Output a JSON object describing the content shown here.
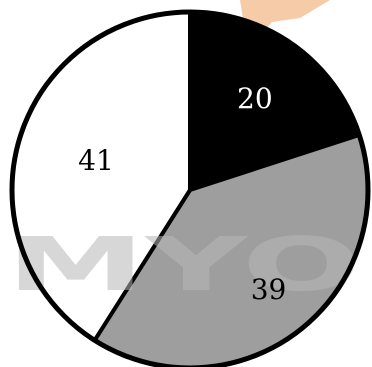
{
  "chart_data": {
    "type": "pie",
    "categories": [
      "",
      "",
      ""
    ],
    "values": [
      20,
      39,
      41
    ],
    "slice_colors": [
      "#000000",
      "#9e9e9e",
      "#ffffff"
    ],
    "label_colors": [
      "#ffffff",
      "#000000",
      "#000000"
    ],
    "data_labels": [
      "20",
      "39",
      "41"
    ],
    "start_angle": "12 o'clock",
    "direction": "clockwise",
    "outline_color": "#000000"
  },
  "watermark": {
    "text": "MYO"
  }
}
